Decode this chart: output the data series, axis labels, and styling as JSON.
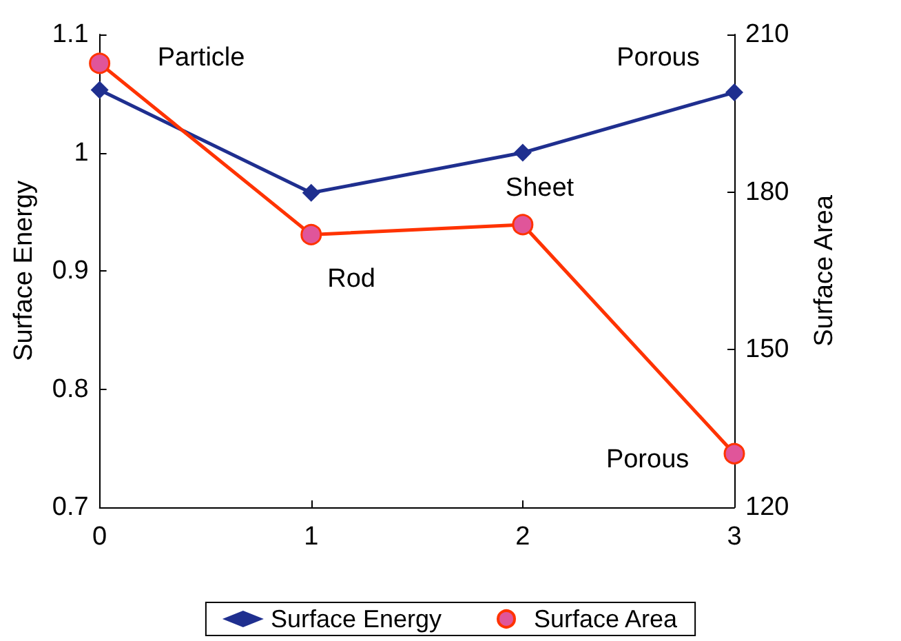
{
  "chart_data": {
    "type": "line",
    "ylabel": "Surface Energy",
    "y2label": "Surface Area",
    "x": [
      0,
      1,
      2,
      3
    ],
    "xlim": [
      0,
      3
    ],
    "xticks": [
      0,
      1,
      2,
      3
    ],
    "ylim": [
      0.7,
      1.1
    ],
    "yticks": [
      0.7,
      0.8,
      0.9,
      1,
      1.1
    ],
    "y2lim": [
      120,
      210
    ],
    "y2ticks": [
      120,
      150,
      180,
      210
    ],
    "series": [
      {
        "name": "Surface Energy",
        "color": "#1f2f8f",
        "values": [
          1.053,
          0.966,
          1.0,
          1.051
        ],
        "marker": "diamond"
      },
      {
        "name": "Surface Area",
        "color": "#ff3300",
        "values": [
          204.5,
          171.9,
          173.8,
          130.2
        ],
        "marker": "circle",
        "axis": "y2"
      }
    ],
    "annotations": [
      "Particle",
      "Rod",
      "Sheet",
      "Porous",
      "Porous"
    ],
    "grid": false,
    "legend": "bottom",
    "line_style": "solid"
  }
}
